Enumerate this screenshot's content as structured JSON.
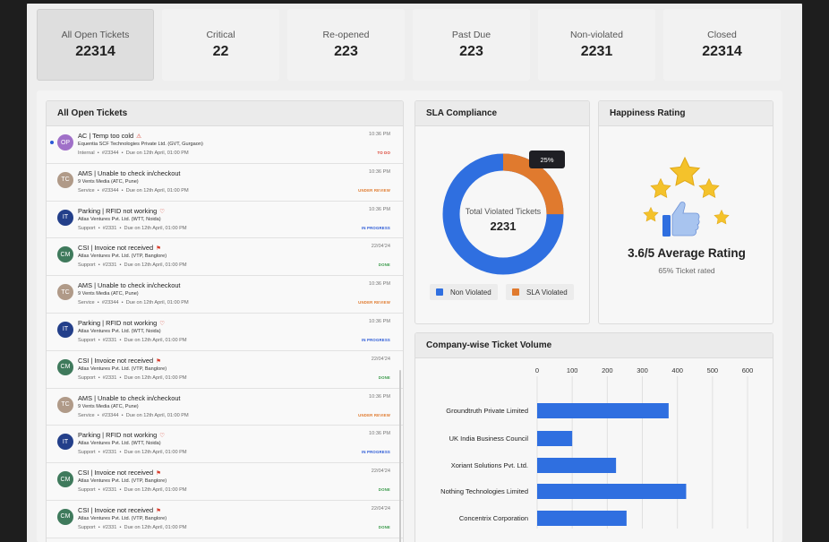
{
  "kpis": [
    {
      "label": "All Open Tickets",
      "value": "22314"
    },
    {
      "label": "Critical",
      "value": "22"
    },
    {
      "label": "Re-opened",
      "value": "223"
    },
    {
      "label": "Past Due",
      "value": "223"
    },
    {
      "label": "Non-violated",
      "value": "2231"
    },
    {
      "label": "Closed",
      "value": "22314"
    }
  ],
  "tickets_panel": {
    "title": "All Open Tickets",
    "items": [
      {
        "initials": "OP",
        "avatar_color": "#a070c8",
        "title": "AC | Temp too cold",
        "flag": "⚠",
        "company": "Equentia SCF Technologies Private Ltd. (GVT, Gurgaon)",
        "type": "Internal",
        "id": "#23344",
        "due": "Due on 12th April, 01:00 PM",
        "time": "10:36 PM",
        "status": "TO DO",
        "status_color": "#d93b2b",
        "unread": true
      },
      {
        "initials": "TC",
        "avatar_color": "#b09a88",
        "title": "AMS | Unable to check in/checkout",
        "flag": "",
        "company": "9 Vents Media (ATC, Pune)",
        "type": "Service",
        "id": "#23344",
        "due": "Due on 12th April, 01:00 PM",
        "time": "10:36 PM",
        "status": "UNDER REVIEW",
        "status_color": "#e07a2e",
        "unread": false
      },
      {
        "initials": "IT",
        "avatar_color": "#233f8a",
        "title": "Parking | RFID not working",
        "flag": "♡",
        "company": "Atlas Ventures Pvt. Ltd. (WTT, Noida)",
        "type": "Support",
        "id": "#2331",
        "due": "Due on 12th April, 01:00 PM",
        "time": "10:36 PM",
        "status": "IN PROGRESS",
        "status_color": "#2a59d6",
        "unread": false
      },
      {
        "initials": "CM",
        "avatar_color": "#3f7a5c",
        "title": "CSI | Invoice not received",
        "flag": "⚑",
        "company": "Atlas Ventures Pvt. Ltd. (VTP, Banglore)",
        "type": "Support",
        "id": "#2331",
        "due": "Due on 12th April, 01:00 PM",
        "time": "22/04'24",
        "status": "DONE",
        "status_color": "#3a9a4a",
        "unread": false
      },
      {
        "initials": "TC",
        "avatar_color": "#b09a88",
        "title": "AMS | Unable to check in/checkout",
        "flag": "",
        "company": "9 Vents Media (ATC, Pune)",
        "type": "Service",
        "id": "#23344",
        "due": "Due on 12th April, 01:00 PM",
        "time": "10:36 PM",
        "status": "UNDER REVIEW",
        "status_color": "#e07a2e",
        "unread": false
      },
      {
        "initials": "IT",
        "avatar_color": "#233f8a",
        "title": "Parking | RFID not working",
        "flag": "♡",
        "company": "Atlas Ventures Pvt. Ltd. (WTT, Noida)",
        "type": "Support",
        "id": "#2331",
        "due": "Due on 12th April, 01:00 PM",
        "time": "10:36 PM",
        "status": "IN PROGRESS",
        "status_color": "#2a59d6",
        "unread": false
      },
      {
        "initials": "CM",
        "avatar_color": "#3f7a5c",
        "title": "CSI | Invoice not received",
        "flag": "⚑",
        "company": "Atlas Ventures Pvt. Ltd. (VTP, Banglore)",
        "type": "Support",
        "id": "#2331",
        "due": "Due on 12th April, 01:00 PM",
        "time": "22/04'24",
        "status": "DONE",
        "status_color": "#3a9a4a",
        "unread": false
      },
      {
        "initials": "TC",
        "avatar_color": "#b09a88",
        "title": "AMS | Unable to check in/checkout",
        "flag": "",
        "company": "9 Vents Media (ATC, Pune)",
        "type": "Service",
        "id": "#23344",
        "due": "Due on 12th April, 01:00 PM",
        "time": "10:36 PM",
        "status": "UNDER REVIEW",
        "status_color": "#e07a2e",
        "unread": false
      },
      {
        "initials": "IT",
        "avatar_color": "#233f8a",
        "title": "Parking | RFID not working",
        "flag": "♡",
        "company": "Atlas Ventures Pvt. Ltd. (WTT, Noida)",
        "type": "Support",
        "id": "#2331",
        "due": "Due on 12th April, 01:00 PM",
        "time": "10:36 PM",
        "status": "IN PROGRESS",
        "status_color": "#2a59d6",
        "unread": false
      },
      {
        "initials": "CM",
        "avatar_color": "#3f7a5c",
        "title": "CSI | Invoice not received",
        "flag": "⚑",
        "company": "Atlas Ventures Pvt. Ltd. (VTP, Banglore)",
        "type": "Support",
        "id": "#2331",
        "due": "Due on 12th April, 01:00 PM",
        "time": "22/04'24",
        "status": "DONE",
        "status_color": "#3a9a4a",
        "unread": false
      },
      {
        "initials": "CM",
        "avatar_color": "#3f7a5c",
        "title": "CSI | Invoice not received",
        "flag": "⚑",
        "company": "Atlas Ventures Pvt. Ltd. (VTP, Banglore)",
        "type": "Support",
        "id": "#2331",
        "due": "Due on 12th April, 01:00 PM",
        "time": "22/04'24",
        "status": "DONE",
        "status_color": "#3a9a4a",
        "unread": false
      }
    ]
  },
  "sla": {
    "title": "SLA Compliance",
    "center_label": "Total Violated Tickets",
    "center_value": "2231",
    "tooltip": "25%",
    "violated_fraction": 0.25,
    "legend": [
      {
        "label": "Non Violated",
        "color": "#2f6fe0"
      },
      {
        "label": "SLA Violated",
        "color": "#e07a2e"
      }
    ]
  },
  "happiness": {
    "title": "Happiness Rating",
    "rating_text": "3.6/5 Average Rating",
    "sub_text": "65% Ticket rated",
    "icon": "thumbs-up-stars-icon",
    "star_color": "#f4c22b",
    "thumb_color": "#2f6fe0"
  },
  "company_chart": {
    "title": "Company-wise Ticket Volume",
    "bar_color": "#2f6fe0"
  },
  "chart_data": {
    "type": "bar",
    "orientation": "horizontal",
    "title": "Company-wise Ticket Volume",
    "categories": [
      "Groundtruth Private Limited",
      "UK India Business Council",
      "Xoriant Solutions Pvt. Ltd.",
      "Nothing Technologies Limited",
      "Concentrix Corporation"
    ],
    "values": [
      375,
      100,
      225,
      425,
      255
    ],
    "xlim": [
      0,
      600
    ],
    "xticks": [
      0,
      100,
      200,
      300,
      400,
      500,
      600
    ],
    "xlabel": "",
    "ylabel": "",
    "grid": true
  }
}
